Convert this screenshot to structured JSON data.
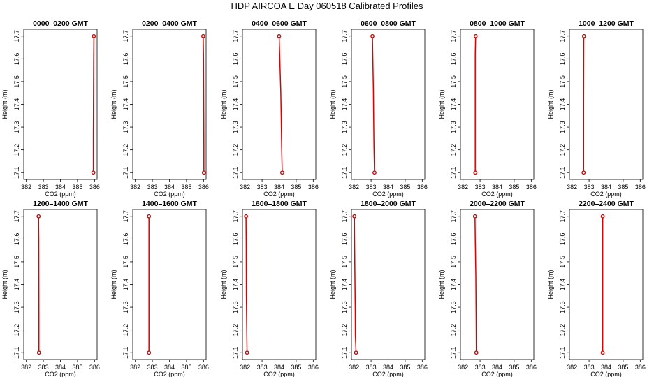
{
  "figure": {
    "title": "HDP  AIRCOA E  Day 060518  Calibrated Profiles"
  },
  "chart_data": [
    {
      "type": "line",
      "title": "0000–0200 GMT",
      "xlabel": "CO2 (ppm)",
      "ylabel": "Height (m)",
      "xlim": [
        381.85,
        386.15
      ],
      "ylim": [
        17.07,
        17.73
      ],
      "xticks": [
        "382",
        "383",
        "384",
        "385",
        "386"
      ],
      "yticks": [
        "17.1",
        "17.2",
        "17.3",
        "17.4",
        "17.5",
        "17.6",
        "17.7"
      ],
      "x": [
        385.93,
        385.93,
        385.95,
        385.96
      ],
      "y": [
        17.1,
        17.26,
        17.6,
        17.7
      ],
      "endpoints": [
        {
          "x": 385.96,
          "y": 17.7
        },
        {
          "x": 385.93,
          "y": 17.1
        }
      ]
    },
    {
      "type": "line",
      "title": "0200–0400 GMT",
      "xlabel": "CO2 (ppm)",
      "ylabel": "Height (m)",
      "xlim": [
        381.85,
        386.15
      ],
      "ylim": [
        17.07,
        17.73
      ],
      "xticks": [
        "382",
        "383",
        "384",
        "385",
        "386"
      ],
      "yticks": [
        "17.1",
        "17.2",
        "17.3",
        "17.4",
        "17.5",
        "17.6",
        "17.7"
      ],
      "x": [
        386.02,
        386.02,
        386.0,
        385.98
      ],
      "y": [
        17.1,
        17.22,
        17.6,
        17.7
      ],
      "endpoints": [
        {
          "x": 385.98,
          "y": 17.7
        },
        {
          "x": 386.02,
          "y": 17.1
        }
      ]
    },
    {
      "type": "line",
      "title": "0400–0600 GMT",
      "xlabel": "CO2 (ppm)",
      "ylabel": "Height (m)",
      "xlim": [
        381.85,
        386.15
      ],
      "ylim": [
        17.07,
        17.73
      ],
      "xticks": [
        "382",
        "383",
        "384",
        "385",
        "386"
      ],
      "yticks": [
        "17.1",
        "17.2",
        "17.3",
        "17.4",
        "17.5",
        "17.6",
        "17.7"
      ],
      "x": [
        384.18,
        384.15,
        384.1,
        384.0
      ],
      "y": [
        17.1,
        17.2,
        17.45,
        17.7
      ],
      "endpoints": [
        {
          "x": 384.0,
          "y": 17.7
        },
        {
          "x": 384.18,
          "y": 17.1
        }
      ]
    },
    {
      "type": "line",
      "title": "0600–0800 GMT",
      "xlabel": "CO2 (ppm)",
      "ylabel": "Height (m)",
      "xlim": [
        381.85,
        386.15
      ],
      "ylim": [
        17.07,
        17.73
      ],
      "xticks": [
        "382",
        "383",
        "384",
        "385",
        "386"
      ],
      "yticks": [
        "17.1",
        "17.2",
        "17.3",
        "17.4",
        "17.5",
        "17.6",
        "17.7"
      ],
      "x": [
        383.2,
        383.17,
        383.13,
        383.08
      ],
      "y": [
        17.1,
        17.22,
        17.48,
        17.7
      ],
      "endpoints": [
        {
          "x": 383.08,
          "y": 17.7
        },
        {
          "x": 383.2,
          "y": 17.1
        }
      ]
    },
    {
      "type": "line",
      "title": "0800–1000 GMT",
      "xlabel": "CO2 (ppm)",
      "ylabel": "Height (m)",
      "xlim": [
        381.85,
        386.15
      ],
      "ylim": [
        17.07,
        17.73
      ],
      "xticks": [
        "382",
        "383",
        "384",
        "385",
        "386"
      ],
      "yticks": [
        "17.1",
        "17.2",
        "17.3",
        "17.4",
        "17.5",
        "17.6",
        "17.7"
      ],
      "x": [
        382.72,
        382.72,
        382.72,
        382.74
      ],
      "y": [
        17.1,
        17.35,
        17.62,
        17.7
      ],
      "endpoints": [
        {
          "x": 382.74,
          "y": 17.7
        },
        {
          "x": 382.72,
          "y": 17.1
        }
      ]
    },
    {
      "type": "line",
      "title": "1000–1200 GMT",
      "xlabel": "CO2 (ppm)",
      "ylabel": "Height (m)",
      "xlim": [
        381.85,
        386.15
      ],
      "ylim": [
        17.07,
        17.73
      ],
      "xticks": [
        "382",
        "383",
        "384",
        "385",
        "386"
      ],
      "yticks": [
        "17.1",
        "17.2",
        "17.3",
        "17.4",
        "17.5",
        "17.6",
        "17.7"
      ],
      "x": [
        382.68,
        382.68,
        382.69,
        382.7
      ],
      "y": [
        17.1,
        17.4,
        17.68,
        17.7
      ],
      "endpoints": [
        {
          "x": 382.7,
          "y": 17.7
        },
        {
          "x": 382.68,
          "y": 17.1
        }
      ]
    },
    {
      "type": "line",
      "title": "1200–1400 GMT",
      "xlabel": "CO2 (ppm)",
      "ylabel": "Height (m)",
      "xlim": [
        381.85,
        386.15
      ],
      "ylim": [
        17.07,
        17.73
      ],
      "xticks": [
        "382",
        "383",
        "384",
        "385",
        "386"
      ],
      "yticks": [
        "17.1",
        "17.2",
        "17.3",
        "17.4",
        "17.5",
        "17.6",
        "17.7"
      ],
      "x": [
        382.74,
        382.74,
        382.73,
        382.72
      ],
      "y": [
        17.1,
        17.26,
        17.6,
        17.7
      ],
      "endpoints": [
        {
          "x": 382.72,
          "y": 17.7
        },
        {
          "x": 382.74,
          "y": 17.1
        }
      ]
    },
    {
      "type": "line",
      "title": "1400–1600 GMT",
      "xlabel": "CO2 (ppm)",
      "ylabel": "Height (m)",
      "xlim": [
        381.85,
        386.15
      ],
      "ylim": [
        17.07,
        17.73
      ],
      "xticks": [
        "382",
        "383",
        "384",
        "385",
        "386"
      ],
      "yticks": [
        "17.1",
        "17.2",
        "17.3",
        "17.4",
        "17.5",
        "17.6",
        "17.7"
      ],
      "x": [
        382.8,
        382.8,
        382.8,
        382.8
      ],
      "y": [
        17.1,
        17.3,
        17.42,
        17.7
      ],
      "endpoints": [
        {
          "x": 382.8,
          "y": 17.7
        },
        {
          "x": 382.8,
          "y": 17.1
        }
      ]
    },
    {
      "type": "line",
      "title": "1600–1800 GMT",
      "xlabel": "CO2 (ppm)",
      "ylabel": "Height (m)",
      "xlim": [
        381.85,
        386.15
      ],
      "ylim": [
        17.07,
        17.73
      ],
      "xticks": [
        "382",
        "383",
        "384",
        "385",
        "386"
      ],
      "yticks": [
        "17.1",
        "17.2",
        "17.3",
        "17.4",
        "17.5",
        "17.6",
        "17.7"
      ],
      "x": [
        382.12,
        382.1,
        382.08,
        382.07,
        382.06
      ],
      "y": [
        17.1,
        17.22,
        17.36,
        17.58,
        17.7
      ],
      "endpoints": [
        {
          "x": 382.06,
          "y": 17.7
        },
        {
          "x": 382.12,
          "y": 17.1
        }
      ]
    },
    {
      "type": "line",
      "title": "1800–2000 GMT",
      "xlabel": "CO2 (ppm)",
      "ylabel": "Height (m)",
      "xlim": [
        381.85,
        386.15
      ],
      "ylim": [
        17.07,
        17.73
      ],
      "xticks": [
        "382",
        "383",
        "384",
        "385",
        "386"
      ],
      "yticks": [
        "17.1",
        "17.2",
        "17.3",
        "17.4",
        "17.5",
        "17.6",
        "17.7"
      ],
      "x": [
        382.12,
        382.08,
        382.07,
        382.04,
        382.02
      ],
      "y": [
        17.1,
        17.18,
        17.3,
        17.55,
        17.7
      ],
      "endpoints": [
        {
          "x": 382.02,
          "y": 17.7
        },
        {
          "x": 382.12,
          "y": 17.1
        }
      ]
    },
    {
      "type": "line",
      "title": "2000–2200 GMT",
      "xlabel": "CO2 (ppm)",
      "ylabel": "Height (m)",
      "xlim": [
        381.85,
        386.15
      ],
      "ylim": [
        17.07,
        17.73
      ],
      "xticks": [
        "382",
        "383",
        "384",
        "385",
        "386"
      ],
      "yticks": [
        "17.1",
        "17.2",
        "17.3",
        "17.4",
        "17.5",
        "17.6",
        "17.7"
      ],
      "x": [
        382.78,
        382.77,
        382.75,
        382.72,
        382.7
      ],
      "y": [
        17.1,
        17.23,
        17.44,
        17.6,
        17.7
      ],
      "endpoints": [
        {
          "x": 382.7,
          "y": 17.7
        },
        {
          "x": 382.78,
          "y": 17.1
        }
      ]
    },
    {
      "type": "line",
      "title": "2200–2400 GMT",
      "xlabel": "CO2 (ppm)",
      "ylabel": "Height (m)",
      "xlim": [
        381.85,
        386.15
      ],
      "ylim": [
        17.07,
        17.73
      ],
      "xticks": [
        "382",
        "383",
        "384",
        "385",
        "386"
      ],
      "yticks": [
        "17.1",
        "17.2",
        "17.3",
        "17.4",
        "17.5",
        "17.6",
        "17.7"
      ],
      "x": [
        383.8,
        383.8,
        383.8,
        383.8
      ],
      "y": [
        17.1,
        17.27,
        17.5,
        17.7
      ],
      "endpoints": [
        {
          "x": 383.8,
          "y": 17.7
        },
        {
          "x": 383.8,
          "y": 17.1
        }
      ]
    }
  ]
}
